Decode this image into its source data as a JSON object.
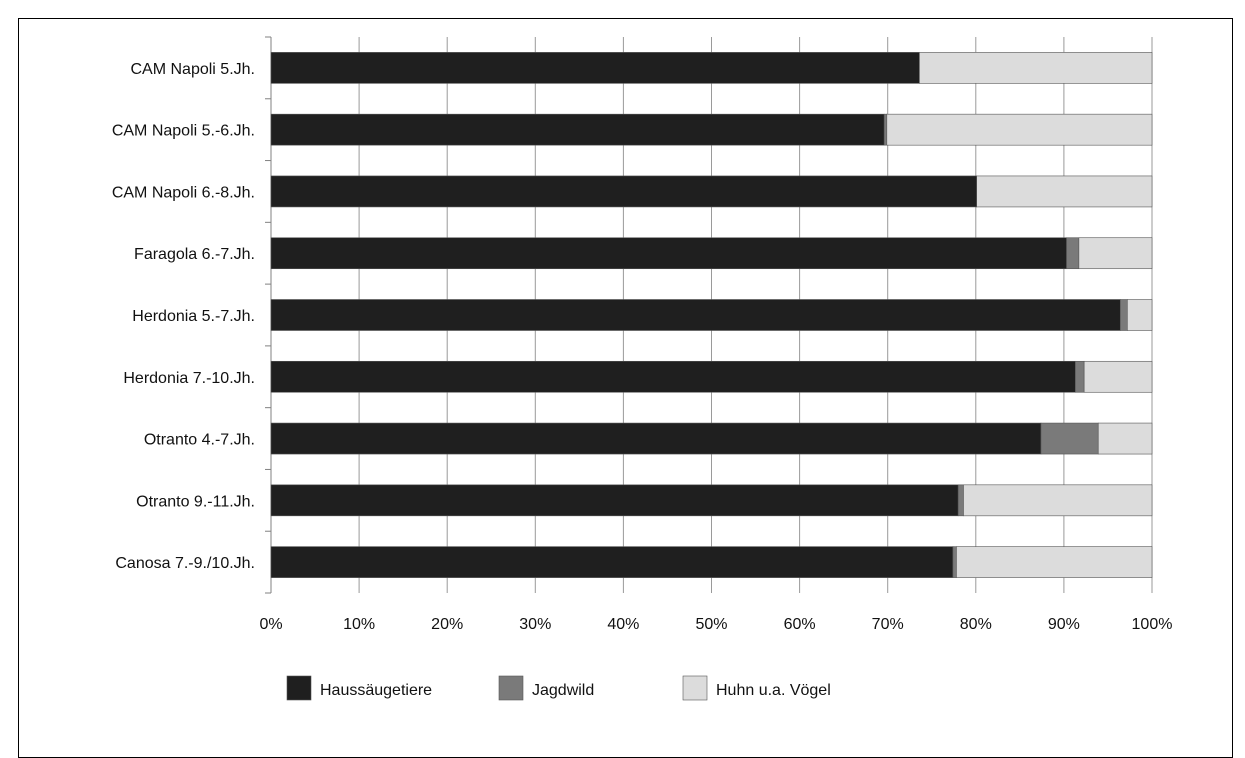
{
  "chart_data": {
    "type": "bar",
    "orientation": "horizontal",
    "stacked": true,
    "normalized": true,
    "categories": [
      "CAM Napoli 5.Jh.",
      "CAM Napoli 5.-6.Jh.",
      "CAM Napoli 6.-8.Jh.",
      "Faragola 6.-7.Jh.",
      "Herdonia 5.-7.Jh.",
      "Herdonia 7.-10.Jh.",
      "Otranto 4.-7.Jh.",
      "Otranto 9.-11.Jh.",
      "Canosa 7.-9./10.Jh."
    ],
    "series": [
      {
        "name": "Haussäugetiere",
        "color": "#1f1f1f",
        "values": [
          73.6,
          69.6,
          80.1,
          90.3,
          96.4,
          91.3,
          87.4,
          78.0,
          77.4
        ]
      },
      {
        "name": "Jagdwild",
        "color": "#7a7a7a",
        "values": [
          0.0,
          0.3,
          0.0,
          1.4,
          0.8,
          1.0,
          6.5,
          0.6,
          0.4
        ]
      },
      {
        "name": "Huhn u.a. Vögel",
        "color": "#dcdcdc",
        "values": [
          26.4,
          30.1,
          19.9,
          8.3,
          2.8,
          7.7,
          6.1,
          21.4,
          22.2
        ]
      }
    ],
    "x_ticks": [
      "0%",
      "10%",
      "20%",
      "30%",
      "40%",
      "50%",
      "60%",
      "70%",
      "80%",
      "90%",
      "100%"
    ],
    "xlim": [
      0,
      100
    ],
    "grid": true,
    "legend_position": "bottom"
  }
}
